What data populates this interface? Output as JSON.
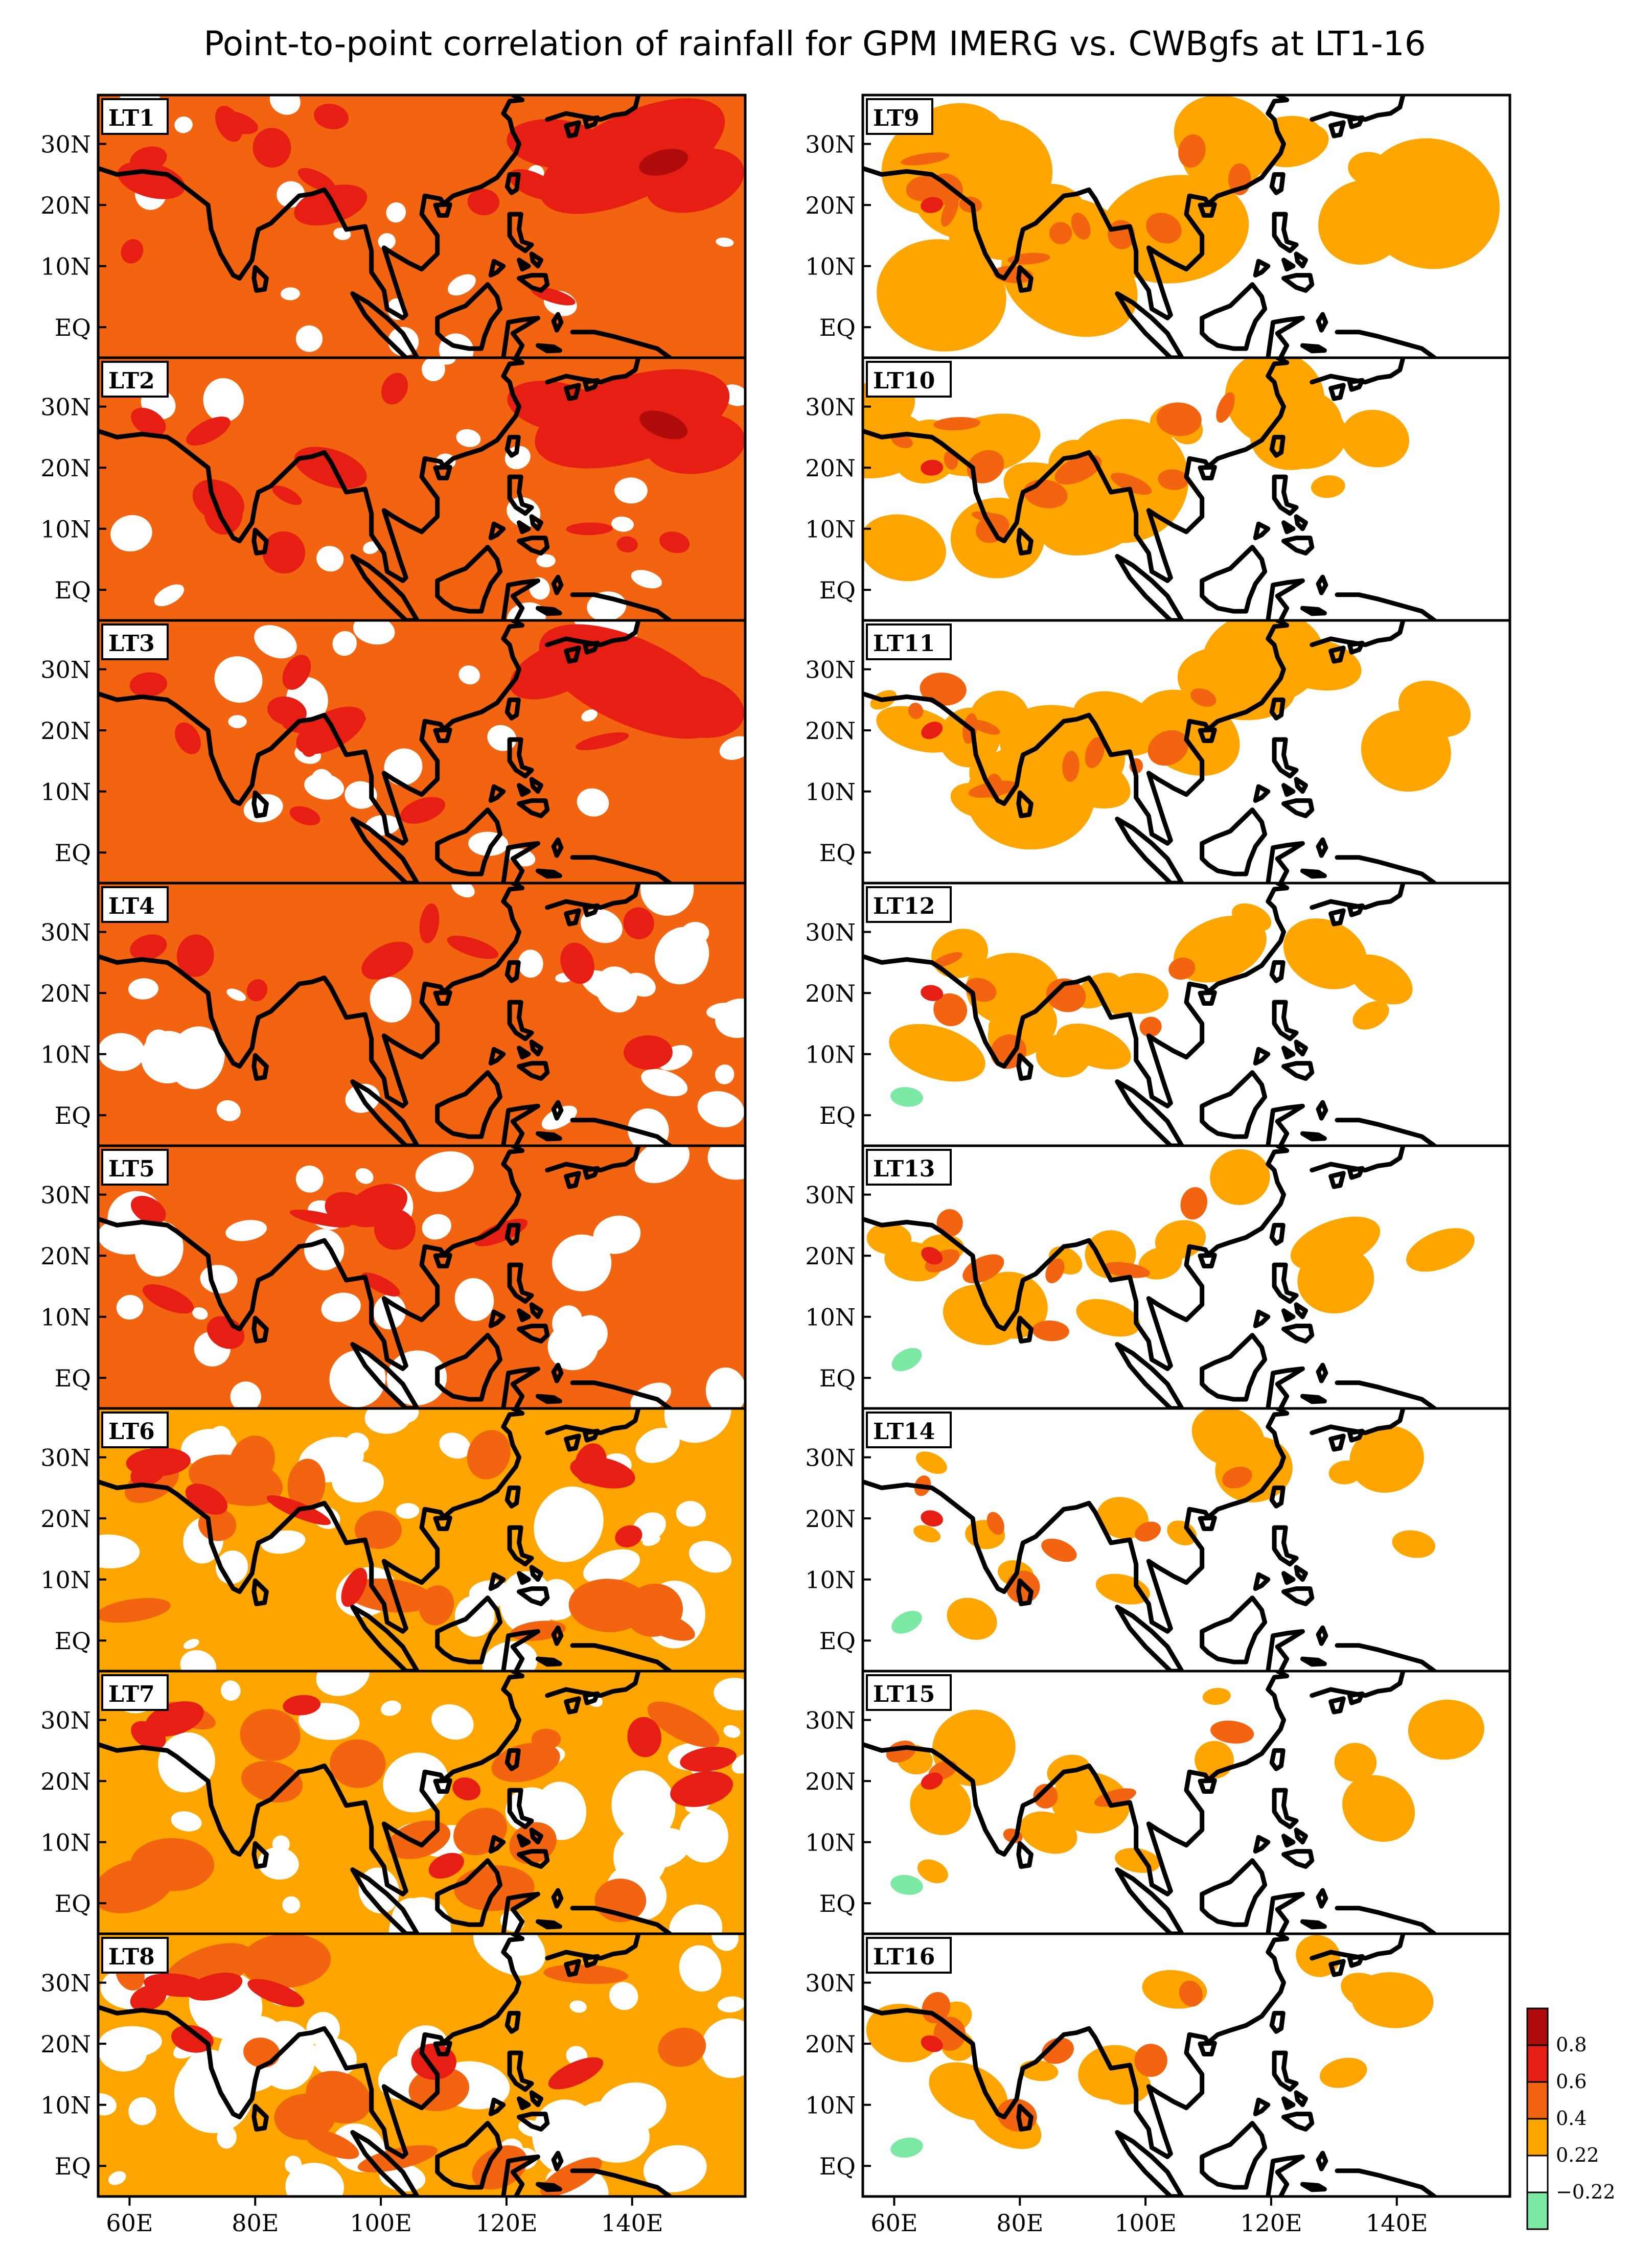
{
  "title": "Point-to-point correlation of rainfall for GPM IMERG vs. CWBgfs at LT1-16",
  "colors": {
    "c_neg": "#7be8a4",
    "c_w": "#ffffff",
    "c_022": "#ffa500",
    "c_04": "#f26410",
    "c_06": "#e61e14",
    "c_08": "#b10c0c",
    "coast": "#000000"
  },
  "map": {
    "lon_range": [
      55,
      158
    ],
    "lat_range": [
      -5,
      38
    ],
    "y_ticks": [
      "30N",
      "20N",
      "10N",
      "EQ"
    ],
    "x_ticks": [
      "60E",
      "80E",
      "100E",
      "120E",
      "140E"
    ]
  },
  "panels": [
    {
      "label": "LT1",
      "level": 0.5
    },
    {
      "label": "LT2",
      "level": 0.48
    },
    {
      "label": "LT3",
      "level": 0.45
    },
    {
      "label": "LT4",
      "level": 0.42
    },
    {
      "label": "LT5",
      "level": 0.4
    },
    {
      "label": "LT6",
      "level": 0.36
    },
    {
      "label": "LT7",
      "level": 0.33
    },
    {
      "label": "LT8",
      "level": 0.3
    },
    {
      "label": "LT9",
      "level": 0.24
    },
    {
      "label": "LT10",
      "level": 0.22
    },
    {
      "label": "LT11",
      "level": 0.2
    },
    {
      "label": "LT12",
      "level": 0.15
    },
    {
      "label": "LT13",
      "level": 0.14
    },
    {
      "label": "LT14",
      "level": 0.13
    },
    {
      "label": "LT15",
      "level": 0.12
    },
    {
      "label": "LT16",
      "level": 0.12
    }
  ],
  "colorbar": {
    "labels": [
      "0.8",
      "0.6",
      "0.4",
      "0.22",
      "−0.22"
    ]
  }
}
